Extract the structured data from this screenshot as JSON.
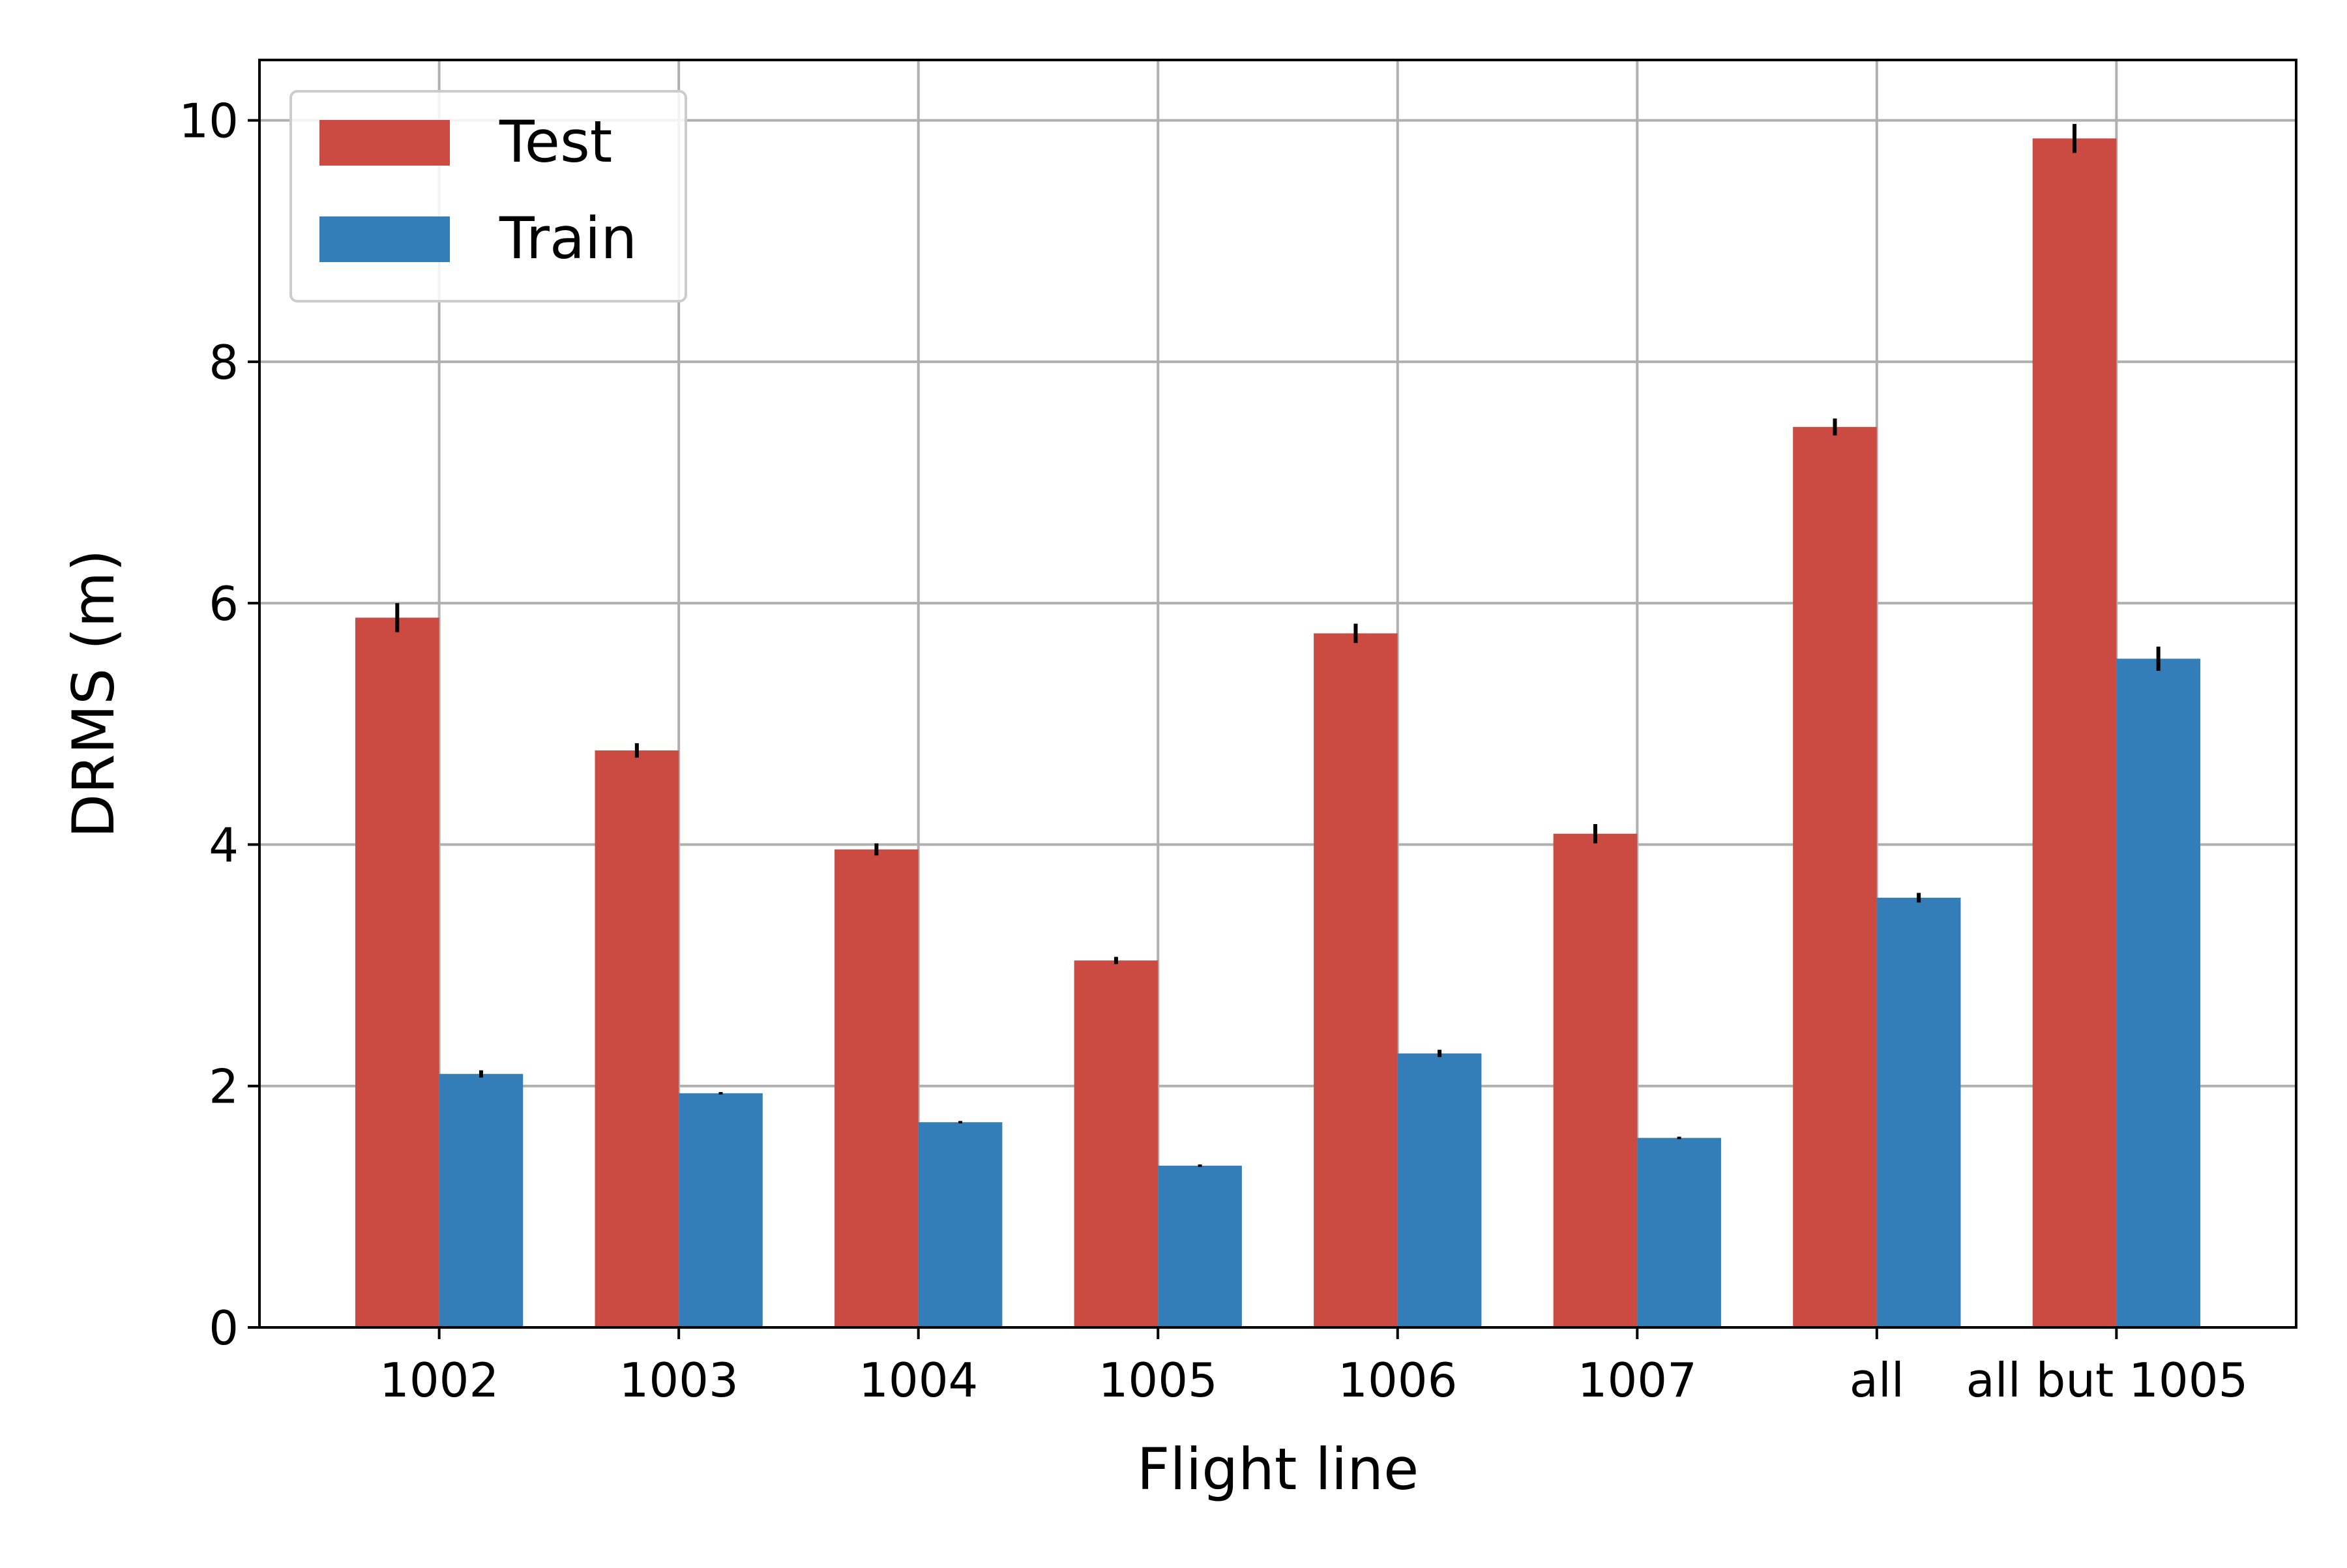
{
  "chart_data": {
    "type": "bar",
    "title": "",
    "xlabel": "Flight line",
    "ylabel": "DRMS (m)",
    "ylim": [
      0,
      10.5
    ],
    "yticks": [
      0,
      2,
      4,
      6,
      8,
      10
    ],
    "grid": true,
    "legend_position": "top-left",
    "categories": [
      "1002",
      "1003",
      "1004",
      "1005",
      "1006",
      "1007",
      "all",
      "all but 1005"
    ],
    "series": [
      {
        "name": "Test",
        "color": "#cb4b43",
        "values": [
          5.88,
          4.78,
          3.96,
          3.04,
          5.75,
          4.09,
          7.46,
          9.85
        ],
        "errors": [
          0.12,
          0.06,
          0.05,
          0.03,
          0.08,
          0.08,
          0.07,
          0.12
        ]
      },
      {
        "name": "Train",
        "color": "#337eb8",
        "values": [
          2.1,
          1.94,
          1.7,
          1.34,
          2.27,
          1.57,
          3.56,
          5.54
        ],
        "errors": [
          0.03,
          0.01,
          0.01,
          0.01,
          0.03,
          0.01,
          0.04,
          0.1
        ]
      }
    ]
  }
}
